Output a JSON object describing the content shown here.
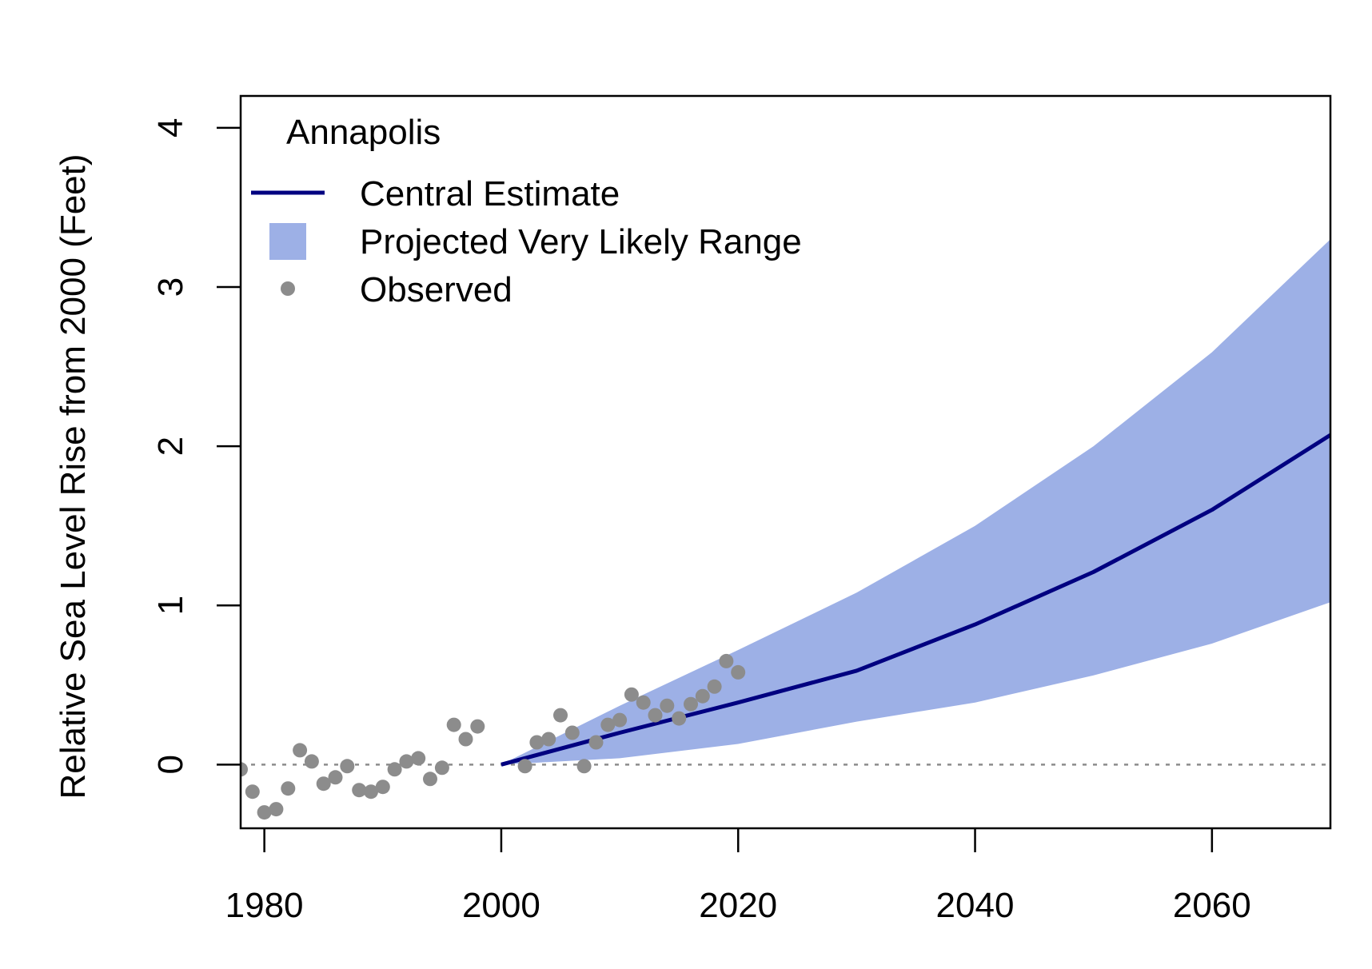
{
  "chart_data": {
    "type": "line",
    "title": "",
    "legend_title": "Annapolis",
    "xlabel": "",
    "ylabel": "Relative Sea Level Rise from 2000 (Feet)",
    "xlim": [
      1978,
      2070
    ],
    "ylim": [
      -0.4,
      4.2
    ],
    "x_ticks": [
      1980,
      2000,
      2020,
      2040,
      2060
    ],
    "y_ticks": [
      0,
      1,
      2,
      3,
      4
    ],
    "grid": false,
    "legend_position": "top-left",
    "reference_line": {
      "y": 0,
      "style": "dotted",
      "color": "#8c8c8c"
    },
    "series": [
      {
        "name": "Central Estimate",
        "kind": "line",
        "color": "#000080",
        "x": [
          2000,
          2010,
          2020,
          2030,
          2040,
          2050,
          2060,
          2070
        ],
        "y": [
          0.0,
          0.2,
          0.39,
          0.59,
          0.88,
          1.21,
          1.6,
          2.07
        ]
      },
      {
        "name": "Projected Very Likely Range",
        "kind": "band",
        "color": "#9db0e6",
        "x": [
          2000,
          2010,
          2020,
          2030,
          2040,
          2050,
          2060,
          2070
        ],
        "lower": [
          0.0,
          0.04,
          0.13,
          0.27,
          0.39,
          0.56,
          0.76,
          1.02
        ],
        "upper": [
          0.0,
          0.37,
          0.72,
          1.08,
          1.5,
          2.0,
          2.59,
          3.3
        ]
      },
      {
        "name": "Observed",
        "kind": "scatter",
        "color": "#8c8c8c",
        "x": [
          1978,
          1979,
          1980,
          1981,
          1982,
          1983,
          1984,
          1985,
          1986,
          1987,
          1988,
          1989,
          1990,
          1991,
          1992,
          1993,
          1994,
          1995,
          1996,
          1997,
          1998,
          2002,
          2003,
          2004,
          2005,
          2006,
          2007,
          2008,
          2009,
          2010,
          2011,
          2012,
          2013,
          2014,
          2015,
          2016,
          2017,
          2018,
          2019,
          2020
        ],
        "y": [
          -0.03,
          -0.17,
          -0.3,
          -0.28,
          -0.15,
          0.09,
          0.02,
          -0.12,
          -0.08,
          -0.01,
          -0.16,
          -0.17,
          -0.14,
          -0.03,
          0.02,
          0.04,
          -0.09,
          -0.02,
          0.25,
          0.16,
          0.24,
          -0.01,
          0.14,
          0.16,
          0.31,
          0.2,
          -0.01,
          0.14,
          0.25,
          0.28,
          0.44,
          0.39,
          0.31,
          0.37,
          0.29,
          0.38,
          0.43,
          0.49,
          0.65,
          0.58
        ]
      }
    ]
  }
}
